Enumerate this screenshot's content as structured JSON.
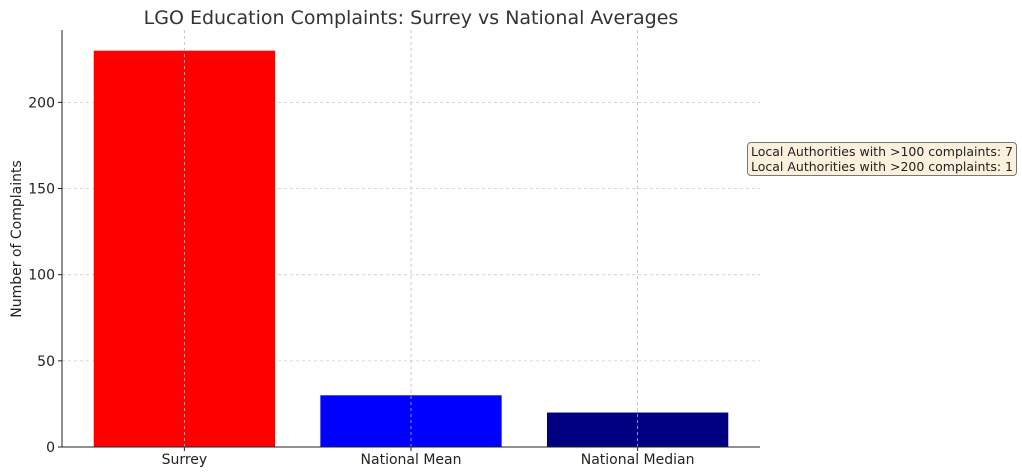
{
  "chart_data": {
    "type": "bar",
    "title": "LGO Education Complaints: Surrey vs National Averages",
    "xlabel": "",
    "ylabel": "Number of Complaints",
    "categories": [
      "Surrey",
      "National Mean",
      "National Median"
    ],
    "values": [
      230,
      30,
      20
    ],
    "colors": [
      "#ff0000",
      "#0000ff",
      "#000080"
    ],
    "ylim": [
      0,
      242
    ],
    "yticks": [
      0,
      50,
      100,
      150,
      200
    ],
    "grid": true,
    "annotation": {
      "lines": [
        "Local Authorities with >100 complaints: 7",
        "Local Authorities with >200 complaints: 1"
      ],
      "placement": "right"
    }
  }
}
